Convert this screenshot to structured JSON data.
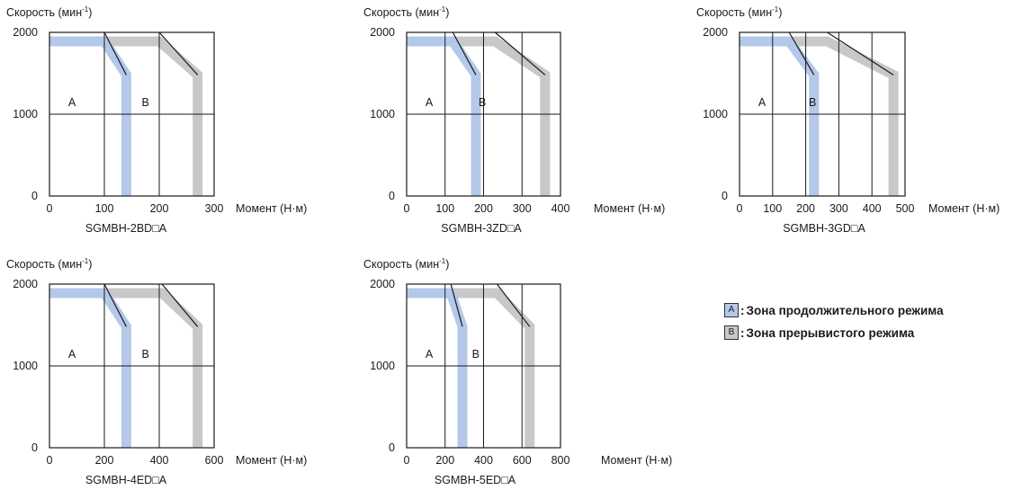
{
  "charts": [
    {
      "model": "SGMBH-2BD□A",
      "y_label": "Скорость (мин",
      "y_label_sup": "-1",
      "y_label_end": ")",
      "x_label": "Момент (Н·м)",
      "y_ticks": [
        "0",
        "1000",
        "2000"
      ],
      "x_ticks": [
        "0",
        "100",
        "200",
        "300"
      ],
      "zone_a": "A",
      "zone_b": "B"
    },
    {
      "model": "SGMBH-3ZD□A",
      "y_label": "Скорость (мин",
      "y_label_sup": "-1",
      "y_label_end": ")",
      "x_label": "Момент (Н·м)",
      "y_ticks": [
        "0",
        "1000",
        "2000"
      ],
      "x_ticks": [
        "0",
        "100",
        "200",
        "300",
        "400"
      ],
      "zone_a": "A",
      "zone_b": "B"
    },
    {
      "model": "SGMBH-3GD□A",
      "y_label": "Скорость (мин",
      "y_label_sup": "-1",
      "y_label_end": ")",
      "x_label": "Момент (Н·м)",
      "y_ticks": [
        "0",
        "1000",
        "2000"
      ],
      "x_ticks": [
        "0",
        "100",
        "200",
        "300",
        "400",
        "500"
      ],
      "zone_a": "A",
      "zone_b": "B"
    },
    {
      "model": "SGMBH-4ED□A",
      "y_label": "Скорость (мин",
      "y_label_sup": "-1",
      "y_label_end": ")",
      "x_label": "Момент (Н·м)",
      "y_ticks": [
        "0",
        "1000",
        "2000"
      ],
      "x_ticks": [
        "0",
        "200",
        "400",
        "600"
      ],
      "zone_a": "A",
      "zone_b": "B"
    },
    {
      "model": "SGMBH-5ED□A",
      "y_label": "Скорость (мин",
      "y_label_sup": "-1",
      "y_label_end": ")",
      "x_label": "Момент (Н·м)",
      "y_ticks": [
        "0",
        "1000",
        "2000"
      ],
      "x_ticks": [
        "0",
        "200",
        "400",
        "600",
        "800"
      ],
      "zone_a": "A",
      "zone_b": "B"
    }
  ],
  "legend": [
    {
      "key": "A",
      "sep": ":",
      "label": "Зона продолжительного режима",
      "color": "#b4c8ea"
    },
    {
      "key": "B",
      "sep": ":",
      "label": "Зона прерывистого режима",
      "color": "#c8c8c8"
    }
  ],
  "chart_data": [
    {
      "type": "line",
      "title": "SGMBH-2BD□A",
      "xlabel": "Момент (Н·м)",
      "ylabel": "Скорость (мин-1)",
      "xlim": [
        0,
        300
      ],
      "ylim": [
        0,
        2000
      ],
      "x_ticks": [
        0,
        100,
        200,
        300
      ],
      "y_ticks": [
        0,
        1000,
        2000
      ],
      "grid": true,
      "series": [
        {
          "name": "A",
          "points": [
            [
              0,
              1890
            ],
            [
              100,
              1890
            ],
            [
              140,
              1480
            ],
            [
              140,
              0
            ]
          ]
        },
        {
          "name": "B",
          "points": [
            [
              0,
              1890
            ],
            [
              200,
              1890
            ],
            [
              270,
              1480
            ],
            [
              270,
              0
            ]
          ]
        }
      ]
    },
    {
      "type": "line",
      "title": "SGMBH-3ZD□A",
      "xlabel": "Момент (Н·м)",
      "ylabel": "Скорость (мин-1)",
      "xlim": [
        0,
        400
      ],
      "ylim": [
        0,
        2000
      ],
      "x_ticks": [
        0,
        100,
        200,
        300,
        400
      ],
      "y_ticks": [
        0,
        1000,
        2000
      ],
      "grid": true,
      "series": [
        {
          "name": "A",
          "points": [
            [
              0,
              1890
            ],
            [
              120,
              1890
            ],
            [
              180,
              1480
            ],
            [
              180,
              0
            ]
          ]
        },
        {
          "name": "B",
          "points": [
            [
              0,
              1890
            ],
            [
              230,
              1890
            ],
            [
              360,
              1480
            ],
            [
              360,
              0
            ]
          ]
        }
      ]
    },
    {
      "type": "line",
      "title": "SGMBH-3GD□A",
      "xlabel": "Момент (Н·м)",
      "ylabel": "Скорость (мин-1)",
      "xlim": [
        0,
        500
      ],
      "ylim": [
        0,
        2000
      ],
      "x_ticks": [
        0,
        100,
        200,
        300,
        400,
        500
      ],
      "y_ticks": [
        0,
        1000,
        2000
      ],
      "grid": true,
      "series": [
        {
          "name": "A",
          "points": [
            [
              0,
              1890
            ],
            [
              150,
              1890
            ],
            [
              225,
              1480
            ],
            [
              225,
              0
            ]
          ]
        },
        {
          "name": "B",
          "points": [
            [
              0,
              1890
            ],
            [
              265,
              1890
            ],
            [
              465,
              1480
            ],
            [
              465,
              0
            ]
          ]
        }
      ]
    },
    {
      "type": "line",
      "title": "SGMBH-4ED□A",
      "xlabel": "Момент (Н·м)",
      "ylabel": "Скорость (мин-1)",
      "xlim": [
        0,
        600
      ],
      "ylim": [
        0,
        2000
      ],
      "x_ticks": [
        0,
        200,
        400,
        600
      ],
      "y_ticks": [
        0,
        1000,
        2000
      ],
      "grid": true,
      "series": [
        {
          "name": "A",
          "points": [
            [
              0,
              1890
            ],
            [
              200,
              1890
            ],
            [
              280,
              1480
            ],
            [
              280,
              0
            ]
          ]
        },
        {
          "name": "B",
          "points": [
            [
              0,
              1890
            ],
            [
              410,
              1890
            ],
            [
              540,
              1480
            ],
            [
              540,
              0
            ]
          ]
        }
      ]
    },
    {
      "type": "line",
      "title": "SGMBH-5ED□A",
      "xlabel": "Момент (Н·м)",
      "ylabel": "Скорость (мин-1)",
      "xlim": [
        0,
        800
      ],
      "ylim": [
        0,
        2000
      ],
      "x_ticks": [
        0,
        200,
        400,
        600,
        800
      ],
      "y_ticks": [
        0,
        1000,
        2000
      ],
      "grid": true,
      "series": [
        {
          "name": "A",
          "points": [
            [
              0,
              1890
            ],
            [
              230,
              1890
            ],
            [
              290,
              1480
            ],
            [
              290,
              0
            ]
          ]
        },
        {
          "name": "B",
          "points": [
            [
              0,
              1890
            ],
            [
              470,
              1890
            ],
            [
              640,
              1480
            ],
            [
              640,
              0
            ]
          ]
        }
      ]
    }
  ]
}
